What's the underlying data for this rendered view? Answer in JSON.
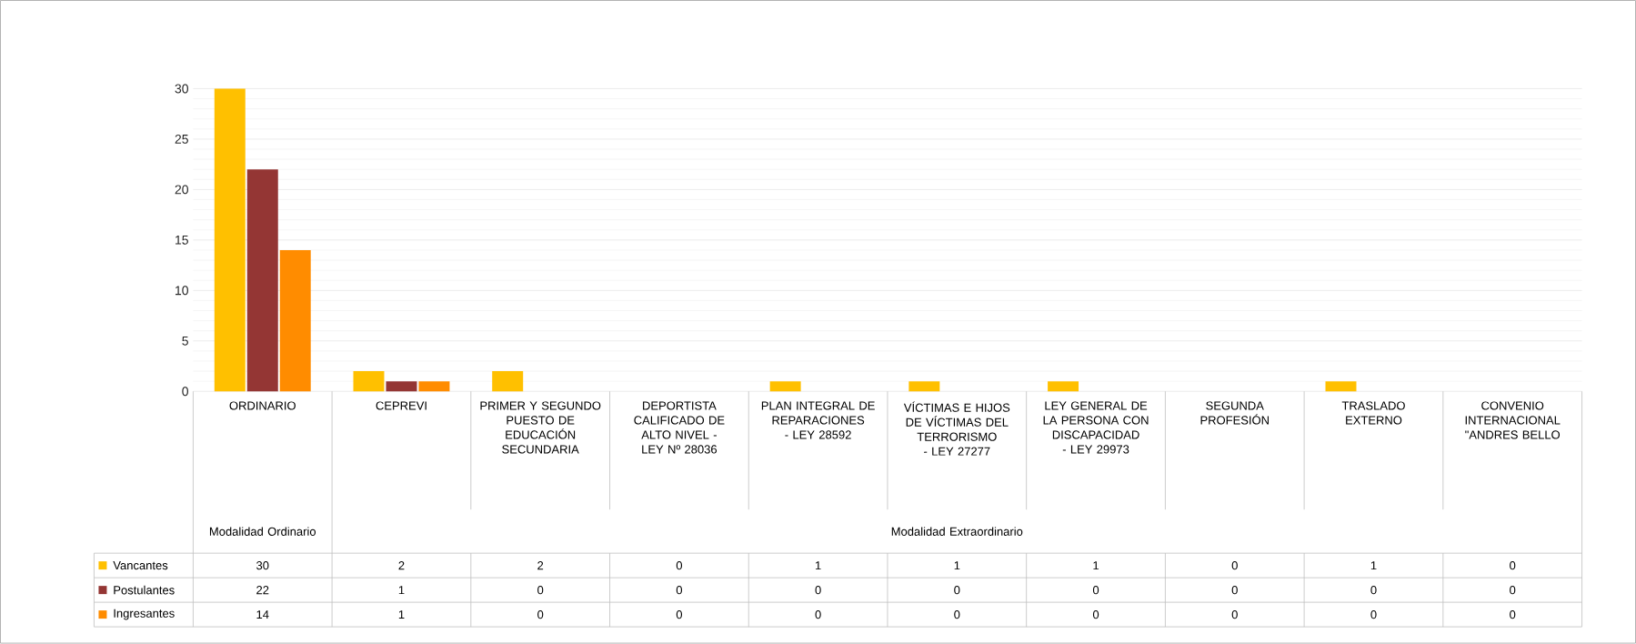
{
  "chart_data": {
    "type": "bar",
    "categories": [
      "ORDINARIO",
      "CEPREVI",
      "PRIMER Y SEGUNDO PUESTO DE EDUCACIÓN SECUNDARIA",
      "DEPORTISTA CALIFICADO DE ALTO NIVEL - LEY Nº 28036",
      "PLAN INTEGRAL DE REPARACIONES - LEY 28592",
      "VÍCTIMAS E HIJOS DE VÍCTIMAS DEL TERRORISMO - LEY 27277",
      "LEY GENERAL DE LA PERSONA CON DISCAPACIDAD - LEY 29973",
      "SEGUNDA PROFESIÓN",
      "TRASLADO EXTERNO",
      "CONVENIO INTERNACIONAL \"ANDRES BELLO"
    ],
    "series": [
      {
        "name": "Vancantes",
        "color": "#ffc000",
        "values": [
          30,
          2,
          2,
          0,
          1,
          1,
          1,
          0,
          1,
          0
        ]
      },
      {
        "name": "Postulantes",
        "color": "#943634",
        "values": [
          22,
          1,
          0,
          0,
          0,
          0,
          0,
          0,
          0,
          0
        ]
      },
      {
        "name": "Ingresantes",
        "color": "#ff8c00",
        "values": [
          14,
          1,
          0,
          0,
          0,
          0,
          0,
          0,
          0,
          0
        ]
      }
    ],
    "ylim": [
      0,
      30
    ],
    "yticks": [
      0,
      5,
      10,
      15,
      20,
      25,
      30
    ],
    "grid": "y",
    "legend": "bottom left",
    "data_labels": true,
    "annotations": [
      "Modalidad Ordinario",
      "Modalidad Extraordinario"
    ]
  }
}
